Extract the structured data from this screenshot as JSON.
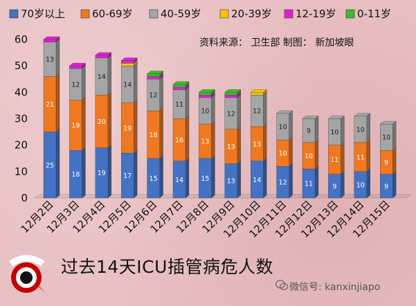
{
  "chart_data": {
    "type": "bar",
    "stacked": true,
    "categories": [
      "12月2日",
      "12月3日",
      "12月4日",
      "12月5日",
      "12月6日",
      "12月7日",
      "12月8日",
      "12月9日",
      "12月10日",
      "12月11日",
      "12月12日",
      "12月13日",
      "12月14日",
      "12月15日"
    ],
    "series": [
      {
        "name": "70岁以上",
        "color": "#4472c4",
        "values": [
          25,
          18,
          19,
          17,
          15,
          14,
          15,
          13,
          14,
          12,
          11,
          9,
          10,
          9
        ]
      },
      {
        "name": "60-69岁",
        "color": "#f07820",
        "values": [
          21,
          19,
          20,
          19,
          18,
          16,
          13,
          13,
          13,
          10,
          10,
          11,
          11,
          9
        ]
      },
      {
        "name": "40-59岁",
        "color": "#a5a5a5",
        "values": [
          13,
          12,
          14,
          14,
          12,
          11,
          10,
          12,
          12,
          10,
          9,
          10,
          10,
          10
        ]
      },
      {
        "name": "20-39岁",
        "color": "#ffc000",
        "values": [
          0,
          0,
          0,
          1,
          0,
          0,
          0,
          0,
          1,
          0,
          0,
          0,
          0,
          0
        ]
      },
      {
        "name": "12-19岁",
        "color": "#e020d0",
        "values": [
          1,
          1,
          1,
          1,
          1,
          1,
          1,
          1,
          0,
          0,
          0,
          0,
          0,
          0
        ]
      },
      {
        "name": "0-11岁",
        "color": "#3cbe28",
        "values": [
          0,
          0,
          0,
          0,
          1,
          1,
          1,
          1,
          0,
          0,
          0,
          0,
          0,
          0
        ]
      }
    ],
    "ylim": [
      0,
      60
    ],
    "yticks": [
      0,
      10,
      20,
      30,
      40,
      50,
      60
    ],
    "legend_position": "top",
    "grid": false
  },
  "source_note": "资料来源： 卫生部     制图： 新加坡眼",
  "footer_title": "过去14天ICU插管病危人数",
  "watermark": "微信号: kanxinjiapo",
  "logo_text": "新加坡眼"
}
